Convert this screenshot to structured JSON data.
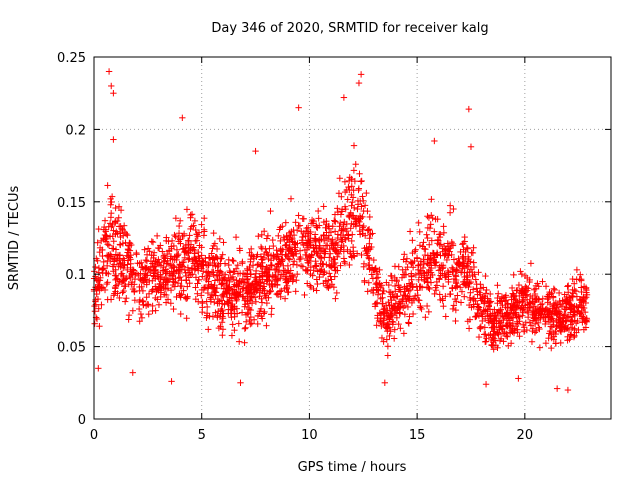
{
  "chart_data": {
    "type": "scatter",
    "title": "Day 346 of 2020, SRMTID for receiver kalg",
    "xlabel": "GPS time / hours",
    "ylabel": "SRMTID / TECUs",
    "xlim": [
      0,
      24
    ],
    "ylim": [
      0,
      0.25
    ],
    "x_ticks": [
      0,
      5,
      10,
      15,
      20
    ],
    "x_tick_labels": [
      "0",
      "5",
      "10",
      "15",
      "20"
    ],
    "y_ticks": [
      0,
      0.05,
      0.1,
      0.15,
      0.2,
      0.25
    ],
    "y_tick_labels": [
      "0",
      "0.05",
      "0.1",
      "0.15",
      "0.2",
      "0.25"
    ],
    "grid": true,
    "marker": "+",
    "color": "#ff0000",
    "x_range_of_data": [
      0,
      22.9
    ],
    "density_profile": [
      {
        "x": 0.0,
        "y_center": 0.09,
        "spread": 0.04
      },
      {
        "x": 0.8,
        "y_center": 0.12,
        "spread": 0.07
      },
      {
        "x": 2.0,
        "y_center": 0.095,
        "spread": 0.04
      },
      {
        "x": 3.5,
        "y_center": 0.1,
        "spread": 0.045
      },
      {
        "x": 4.5,
        "y_center": 0.11,
        "spread": 0.05
      },
      {
        "x": 6.5,
        "y_center": 0.085,
        "spread": 0.045
      },
      {
        "x": 8.0,
        "y_center": 0.1,
        "spread": 0.045
      },
      {
        "x": 9.5,
        "y_center": 0.12,
        "spread": 0.05
      },
      {
        "x": 11.0,
        "y_center": 0.11,
        "spread": 0.045
      },
      {
        "x": 12.2,
        "y_center": 0.15,
        "spread": 0.06
      },
      {
        "x": 13.5,
        "y_center": 0.07,
        "spread": 0.035
      },
      {
        "x": 15.5,
        "y_center": 0.11,
        "spread": 0.05
      },
      {
        "x": 17.3,
        "y_center": 0.1,
        "spread": 0.05
      },
      {
        "x": 18.5,
        "y_center": 0.065,
        "spread": 0.03
      },
      {
        "x": 20.0,
        "y_center": 0.08,
        "spread": 0.035
      },
      {
        "x": 21.5,
        "y_center": 0.07,
        "spread": 0.035
      },
      {
        "x": 22.9,
        "y_center": 0.08,
        "spread": 0.04
      }
    ],
    "highlights": [
      {
        "x": 0.7,
        "y": 0.24
      },
      {
        "x": 0.8,
        "y": 0.23
      },
      {
        "x": 0.9,
        "y": 0.225
      },
      {
        "x": 9.5,
        "y": 0.215
      },
      {
        "x": 12.4,
        "y": 0.238
      },
      {
        "x": 12.3,
        "y": 0.232
      },
      {
        "x": 11.6,
        "y": 0.222
      },
      {
        "x": 17.4,
        "y": 0.214
      },
      {
        "x": 4.1,
        "y": 0.208
      },
      {
        "x": 15.8,
        "y": 0.192
      },
      {
        "x": 17.5,
        "y": 0.188
      },
      {
        "x": 0.9,
        "y": 0.193
      },
      {
        "x": 7.5,
        "y": 0.185
      },
      {
        "x": 21.5,
        "y": 0.021
      },
      {
        "x": 22.0,
        "y": 0.02
      },
      {
        "x": 18.2,
        "y": 0.024
      },
      {
        "x": 13.5,
        "y": 0.025
      },
      {
        "x": 6.8,
        "y": 0.025
      },
      {
        "x": 3.6,
        "y": 0.026
      },
      {
        "x": 1.8,
        "y": 0.032
      },
      {
        "x": 0.2,
        "y": 0.035
      },
      {
        "x": 19.7,
        "y": 0.028
      }
    ]
  }
}
